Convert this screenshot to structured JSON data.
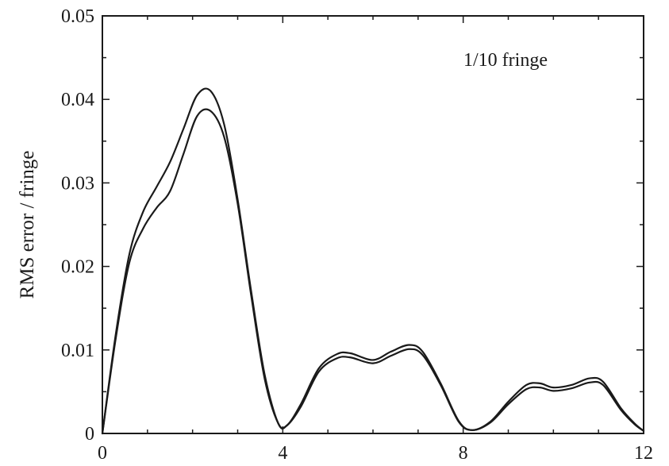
{
  "chart_data": {
    "type": "line",
    "title": "",
    "xlabel": "",
    "ylabel": "RMS error / fringe",
    "annotation": "1/10 fringe",
    "xlim": [
      0,
      12
    ],
    "ylim": [
      0,
      0.05
    ],
    "x_ticks": [
      0,
      4,
      8,
      12
    ],
    "x_tick_labels": [
      "0",
      "4",
      "8",
      "12"
    ],
    "x_minor_ticks": [
      1,
      2,
      3,
      5,
      6,
      7,
      9,
      10,
      11
    ],
    "y_ticks": [
      0,
      0.01,
      0.02,
      0.03,
      0.04,
      0.05
    ],
    "y_tick_labels": [
      "0",
      "0.01",
      "0.02",
      "0.03",
      "0.04",
      "0.05"
    ],
    "y_minor_ticks": [
      0.005,
      0.015,
      0.025,
      0.035,
      0.045
    ],
    "grid": false,
    "series": [
      {
        "x": [
          0,
          0.3,
          0.6,
          0.9,
          1.2,
          1.5,
          1.8,
          2.1,
          2.4,
          2.7,
          3.0,
          3.3,
          3.6,
          3.9,
          4.1,
          4.4,
          4.8,
          5.2,
          5.5,
          6.0,
          6.4,
          6.8,
          7.1,
          7.5,
          7.9,
          8.2,
          8.6,
          9.0,
          9.4,
          9.7,
          10.0,
          10.4,
          10.8,
          11.1,
          11.5,
          11.8,
          12.0
        ],
        "y": [
          0.0,
          0.012,
          0.0215,
          0.0265,
          0.0295,
          0.0325,
          0.0365,
          0.0405,
          0.041,
          0.037,
          0.028,
          0.017,
          0.007,
          0.0012,
          0.001,
          0.0035,
          0.0078,
          0.0095,
          0.0096,
          0.0088,
          0.0098,
          0.0106,
          0.0098,
          0.006,
          0.0015,
          0.0004,
          0.0014,
          0.0038,
          0.0058,
          0.006,
          0.0055,
          0.0058,
          0.0066,
          0.0062,
          0.003,
          0.0012,
          0.0003
        ]
      },
      {
        "x": [
          0,
          0.3,
          0.6,
          0.9,
          1.2,
          1.5,
          1.8,
          2.1,
          2.4,
          2.7,
          3.0,
          3.3,
          3.6,
          3.9,
          4.1,
          4.4,
          4.8,
          5.2,
          5.5,
          6.0,
          6.4,
          6.8,
          7.1,
          7.5,
          7.9,
          8.2,
          8.6,
          9.0,
          9.4,
          9.7,
          10.0,
          10.4,
          10.8,
          11.1,
          11.5,
          11.8,
          12.0
        ],
        "y": [
          0.0,
          0.0115,
          0.0205,
          0.0245,
          0.027,
          0.029,
          0.0335,
          0.038,
          0.0386,
          0.0355,
          0.0275,
          0.0165,
          0.0065,
          0.0012,
          0.001,
          0.0032,
          0.0074,
          0.009,
          0.0091,
          0.0084,
          0.0093,
          0.0101,
          0.0094,
          0.0058,
          0.0014,
          0.0004,
          0.0013,
          0.0035,
          0.0053,
          0.0055,
          0.0051,
          0.0054,
          0.0061,
          0.0058,
          0.0028,
          0.0011,
          0.0003
        ]
      }
    ]
  }
}
